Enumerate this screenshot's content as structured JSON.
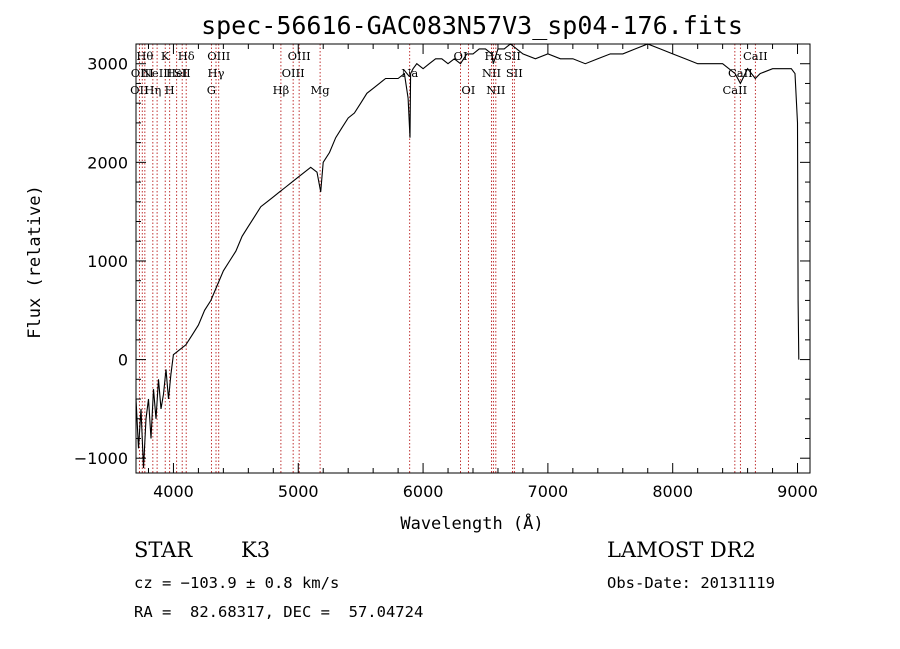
{
  "chart_data": {
    "type": "line",
    "title": "spec-56616-GAC083N57V3_sp04-176.fits",
    "xlabel": "Wavelength (Å)",
    "ylabel": "Flux (relative)",
    "xlim": [
      3700,
      9100
    ],
    "ylim": [
      -1150,
      3200
    ],
    "xticks": [
      4000,
      5000,
      6000,
      7000,
      8000,
      9000
    ],
    "yticks": [
      -1000,
      0,
      1000,
      2000,
      3000
    ],
    "xtick_labels": [
      "4000",
      "5000",
      "6000",
      "7000",
      "8000",
      "9000"
    ],
    "ytick_labels": [
      "−1000",
      "0",
      "1000",
      "2000",
      "3000"
    ],
    "grid": false,
    "series": [
      {
        "x": [
          3700,
          3720,
          3740,
          3760,
          3780,
          3800,
          3820,
          3840,
          3860,
          3880,
          3900,
          3920,
          3940,
          3960,
          3980,
          4000,
          4050,
          4100,
          4150,
          4200,
          4250,
          4300,
          4350,
          4400,
          4450,
          4500,
          4550,
          4600,
          4650,
          4700,
          4750,
          4800,
          4850,
          4900,
          4950,
          5000,
          5050,
          5100,
          5150,
          5180,
          5200,
          5250,
          5300,
          5350,
          5400,
          5450,
          5500,
          5550,
          5600,
          5650,
          5700,
          5750,
          5800,
          5850,
          5880,
          5895,
          5900,
          5920,
          5950,
          6000,
          6050,
          6100,
          6150,
          6200,
          6250,
          6300,
          6350,
          6400,
          6450,
          6500,
          6550,
          6563,
          6600,
          6650,
          6700,
          6750,
          6800,
          6900,
          7000,
          7100,
          7200,
          7300,
          7400,
          7500,
          7600,
          7700,
          7800,
          7900,
          8000,
          8100,
          8200,
          8300,
          8400,
          8500,
          8542,
          8600,
          8662,
          8700,
          8800,
          8900,
          8950,
          8980,
          9000,
          9005,
          9010
        ],
        "y": [
          -400,
          -900,
          -500,
          -1100,
          -600,
          -400,
          -800,
          -300,
          -600,
          -200,
          -500,
          -350,
          -100,
          -400,
          -150,
          50,
          100,
          150,
          250,
          350,
          500,
          600,
          750,
          900,
          1000,
          1100,
          1250,
          1350,
          1450,
          1550,
          1600,
          1650,
          1700,
          1750,
          1800,
          1850,
          1900,
          1950,
          1900,
          1700,
          2000,
          2100,
          2250,
          2350,
          2450,
          2500,
          2600,
          2700,
          2750,
          2800,
          2850,
          2850,
          2850,
          2900,
          2650,
          2250,
          2900,
          2950,
          3000,
          2950,
          3000,
          3050,
          3050,
          3000,
          3050,
          3000,
          3100,
          3100,
          3150,
          3150,
          3100,
          3000,
          3150,
          3150,
          3200,
          3150,
          3100,
          3050,
          3100,
          3050,
          3050,
          3000,
          3050,
          3100,
          3100,
          3150,
          3200,
          3150,
          3100,
          3050,
          3000,
          3000,
          3000,
          2900,
          2800,
          2950,
          2850,
          2900,
          2950,
          2950,
          2950,
          2900,
          2400,
          600,
          0
        ]
      }
    ],
    "lines": [
      {
        "x": 3727,
        "label": "OII",
        "row": 3
      },
      {
        "x": 3750,
        "label": "OIII",
        "row": 2
      },
      {
        "x": 3771,
        "label": "Hθ",
        "row": 1
      },
      {
        "x": 3835,
        "label": "Hη",
        "row": 3
      },
      {
        "x": 3869,
        "label": "NeIII",
        "row": 2
      },
      {
        "x": 3934,
        "label": "K",
        "row": 1
      },
      {
        "x": 3970,
        "label": "H",
        "row": 3
      },
      {
        "x": 4026,
        "label": "HeI",
        "row": 2
      },
      {
        "x": 4070,
        "label": "SII",
        "row": 2
      },
      {
        "x": 4102,
        "label": "Hδ",
        "row": 1
      },
      {
        "x": 4304,
        "label": "G",
        "row": 3
      },
      {
        "x": 4341,
        "label": "Hγ",
        "row": 2
      },
      {
        "x": 4363,
        "label": "OIII",
        "row": 1
      },
      {
        "x": 4861,
        "label": "Hβ",
        "row": 3
      },
      {
        "x": 4959,
        "label": "OIII",
        "row": 2
      },
      {
        "x": 5007,
        "label": "OIII",
        "row": 1
      },
      {
        "x": 5175,
        "label": "Mg",
        "row": 3
      },
      {
        "x": 5893,
        "label": "Na",
        "row": 2
      },
      {
        "x": 6300,
        "label": "OI",
        "row": 1
      },
      {
        "x": 6363,
        "label": "OI",
        "row": 3
      },
      {
        "x": 6548,
        "label": "NII",
        "row": 2
      },
      {
        "x": 6563,
        "label": "Hα",
        "row": 1
      },
      {
        "x": 6583,
        "label": "NII",
        "row": 3
      },
      {
        "x": 6716,
        "label": "SII",
        "row": 1
      },
      {
        "x": 6731,
        "label": "SII",
        "row": 2
      },
      {
        "x": 8498,
        "label": "CaII",
        "row": 3
      },
      {
        "x": 8542,
        "label": "CaII",
        "row": 2
      },
      {
        "x": 8662,
        "label": "CaII",
        "row": 1
      }
    ]
  },
  "footer": {
    "object_class": "STAR",
    "subclass": "K3",
    "cz": "cz = −103.9 ± 0.8 km/s",
    "coords": "RA =  82.68317, DEC =  57.04724",
    "survey": "LAMOST DR2",
    "obs_date": "Obs-Date: 20131119"
  },
  "colors": {
    "spectrum": "#000000",
    "line_markers": "#b00000",
    "axes": "#000000"
  }
}
